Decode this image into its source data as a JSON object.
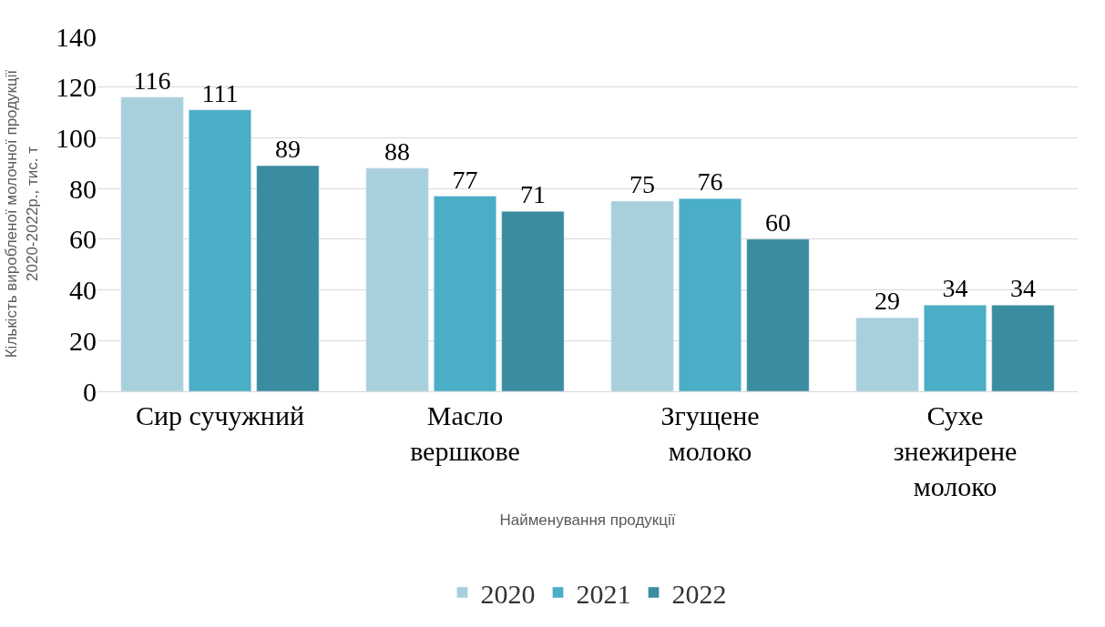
{
  "chart_data": {
    "type": "bar",
    "xlabel": "Найменування продукції",
    "ylabel": "Кількість виробленої молочної продукції\n2020-2022р., тис. т",
    "categories": [
      "Сир сучужний",
      "Масло\nвершкове",
      "Згущене\nмолоко",
      "Сухе\nзнежирене\nмолоко"
    ],
    "series": [
      {
        "name": "2020",
        "color": "#a8d0dc",
        "values": [
          116,
          88,
          75,
          29
        ]
      },
      {
        "name": "2021",
        "color": "#4aaec6",
        "values": [
          111,
          77,
          76,
          34
        ]
      },
      {
        "name": "2022",
        "color": "#3a8ca0",
        "values": [
          89,
          71,
          60,
          34
        ]
      }
    ],
    "ylim": [
      0,
      140
    ],
    "yticks": [
      0,
      20,
      40,
      60,
      80,
      100,
      120,
      140
    ],
    "grid": "y",
    "legend": "bottom",
    "data_labels": true
  }
}
